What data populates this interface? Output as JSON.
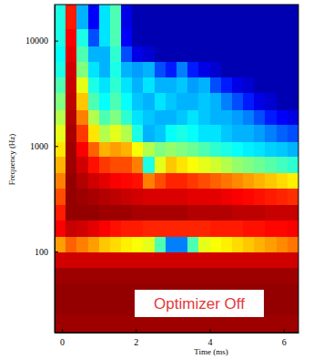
{
  "chart_data": {
    "type": "heatmap",
    "x_label": "Time (ms)",
    "y_label": "Frequency (Hz)",
    "annotation": "Optimizer Off",
    "log": "y",
    "xlim": [
      -0.2,
      6.4
    ],
    "xticks": [
      0,
      2,
      4,
      6
    ],
    "ylim": [
      17,
      22000
    ],
    "yticks": [
      100,
      1000,
      10000
    ],
    "zlim": [
      0,
      1
    ],
    "x_edges": [
      -0.2,
      0.1,
      0.4,
      0.7,
      1.0,
      1.3,
      1.6,
      1.9,
      2.2,
      2.5,
      2.8,
      3.1,
      3.4,
      3.7,
      4.0,
      4.3,
      4.6,
      4.9,
      5.2,
      5.5,
      5.8,
      6.1,
      6.4
    ],
    "y_edges": [
      17,
      25,
      35,
      50,
      70,
      100,
      140,
      200,
      280,
      400,
      560,
      800,
      1100,
      1600,
      2200,
      3200,
      4500,
      6400,
      9000,
      13000,
      22000
    ],
    "z": [
      [
        0.97,
        0.97,
        0.97,
        0.97,
        0.97,
        0.97,
        0.97,
        0.97,
        0.97,
        0.97,
        0.97,
        0.97,
        0.97,
        0.97,
        0.97,
        0.97,
        0.97,
        0.97,
        0.97,
        0.97,
        0.97,
        0.97
      ],
      [
        0.98,
        0.98,
        0.98,
        0.98,
        0.98,
        0.98,
        0.98,
        0.98,
        0.98,
        0.98,
        0.98,
        0.98,
        0.98,
        0.98,
        0.98,
        0.98,
        0.98,
        0.98,
        0.98,
        0.98,
        0.98,
        0.98
      ],
      [
        0.98,
        0.98,
        0.98,
        0.98,
        0.98,
        0.98,
        0.98,
        0.98,
        0.98,
        0.98,
        0.98,
        0.98,
        0.98,
        0.98,
        0.98,
        0.98,
        0.98,
        0.98,
        0.98,
        0.98,
        0.98,
        0.98
      ],
      [
        0.97,
        0.97,
        0.97,
        0.97,
        0.97,
        0.97,
        0.97,
        0.97,
        0.97,
        0.97,
        0.97,
        0.97,
        0.97,
        0.97,
        0.97,
        0.97,
        0.97,
        0.97,
        0.97,
        0.97,
        0.97,
        0.97
      ],
      [
        0.92,
        0.92,
        0.92,
        0.92,
        0.92,
        0.92,
        0.92,
        0.92,
        0.92,
        0.92,
        0.92,
        0.92,
        0.92,
        0.92,
        0.92,
        0.92,
        0.92,
        0.92,
        0.92,
        0.92,
        0.92,
        0.92
      ],
      [
        0.72,
        0.78,
        0.75,
        0.72,
        0.68,
        0.66,
        0.64,
        0.62,
        0.6,
        0.45,
        0.25,
        0.25,
        0.45,
        0.6,
        0.62,
        0.64,
        0.66,
        0.68,
        0.7,
        0.72,
        0.74,
        0.76
      ],
      [
        0.88,
        0.93,
        0.92,
        0.9,
        0.88,
        0.86,
        0.85,
        0.85,
        0.84,
        0.84,
        0.84,
        0.84,
        0.84,
        0.84,
        0.85,
        0.85,
        0.85,
        0.86,
        0.86,
        0.87,
        0.87,
        0.88
      ],
      [
        0.85,
        0.98,
        0.98,
        0.98,
        0.97,
        0.97,
        0.97,
        0.96,
        0.96,
        0.96,
        0.96,
        0.96,
        0.95,
        0.95,
        0.95,
        0.95,
        0.94,
        0.94,
        0.94,
        0.93,
        0.93,
        0.93
      ],
      [
        0.8,
        0.98,
        0.97,
        0.96,
        0.95,
        0.94,
        0.93,
        0.92,
        0.91,
        0.91,
        0.91,
        0.91,
        0.9,
        0.9,
        0.9,
        0.89,
        0.88,
        0.87,
        0.86,
        0.85,
        0.84,
        0.83
      ],
      [
        0.75,
        0.98,
        0.95,
        0.92,
        0.9,
        0.88,
        0.87,
        0.86,
        0.75,
        0.8,
        0.84,
        0.84,
        0.82,
        0.8,
        0.78,
        0.76,
        0.74,
        0.72,
        0.7,
        0.68,
        0.66,
        0.64
      ],
      [
        0.7,
        0.97,
        0.92,
        0.86,
        0.82,
        0.8,
        0.8,
        0.75,
        0.4,
        0.6,
        0.68,
        0.65,
        0.62,
        0.6,
        0.58,
        0.55,
        0.52,
        0.5,
        0.48,
        0.46,
        0.44,
        0.42
      ],
      [
        0.65,
        0.97,
        0.88,
        0.78,
        0.7,
        0.72,
        0.7,
        0.62,
        0.55,
        0.5,
        0.52,
        0.5,
        0.48,
        0.45,
        0.42,
        0.4,
        0.38,
        0.36,
        0.35,
        0.33,
        0.32,
        0.3
      ],
      [
        0.6,
        0.96,
        0.82,
        0.65,
        0.55,
        0.6,
        0.55,
        0.4,
        0.3,
        0.32,
        0.38,
        0.4,
        0.38,
        0.35,
        0.35,
        0.32,
        0.3,
        0.3,
        0.28,
        0.25,
        0.22,
        0.2
      ],
      [
        0.55,
        0.95,
        0.75,
        0.55,
        0.45,
        0.5,
        0.42,
        0.35,
        0.32,
        0.3,
        0.3,
        0.32,
        0.35,
        0.32,
        0.3,
        0.3,
        0.28,
        0.25,
        0.2,
        0.15,
        0.12,
        0.1
      ],
      [
        0.5,
        0.94,
        0.68,
        0.45,
        0.38,
        0.45,
        0.38,
        0.32,
        0.3,
        0.35,
        0.32,
        0.3,
        0.3,
        0.32,
        0.3,
        0.25,
        0.2,
        0.15,
        0.1,
        0.08,
        0.05,
        0.05
      ],
      [
        0.45,
        0.93,
        0.6,
        0.4,
        0.35,
        0.42,
        0.35,
        0.3,
        0.35,
        0.3,
        0.3,
        0.32,
        0.28,
        0.3,
        0.2,
        0.15,
        0.1,
        0.08,
        0.05,
        0.05,
        0.05,
        0.05
      ],
      [
        0.4,
        0.92,
        0.5,
        0.35,
        0.3,
        0.4,
        0.3,
        0.28,
        0.3,
        0.2,
        0.15,
        0.25,
        0.15,
        0.1,
        0.08,
        0.05,
        0.05,
        0.05,
        0.05,
        0.05,
        0.05,
        0.05
      ],
      [
        0.38,
        0.9,
        0.45,
        0.3,
        0.3,
        0.42,
        0.2,
        0.1,
        0.08,
        0.05,
        0.05,
        0.05,
        0.05,
        0.05,
        0.05,
        0.05,
        0.05,
        0.05,
        0.05,
        0.05,
        0.05,
        0.05
      ],
      [
        0.4,
        0.88,
        0.4,
        0.2,
        0.35,
        0.45,
        0.12,
        0.05,
        0.05,
        0.05,
        0.05,
        0.05,
        0.05,
        0.05,
        0.05,
        0.05,
        0.05,
        0.05,
        0.05,
        0.05,
        0.05,
        0.05
      ],
      [
        0.4,
        0.85,
        0.3,
        0.12,
        0.35,
        0.45,
        0.1,
        0.05,
        0.05,
        0.05,
        0.05,
        0.05,
        0.05,
        0.05,
        0.05,
        0.05,
        0.05,
        0.05,
        0.05,
        0.05,
        0.05,
        0.05
      ]
    ]
  }
}
